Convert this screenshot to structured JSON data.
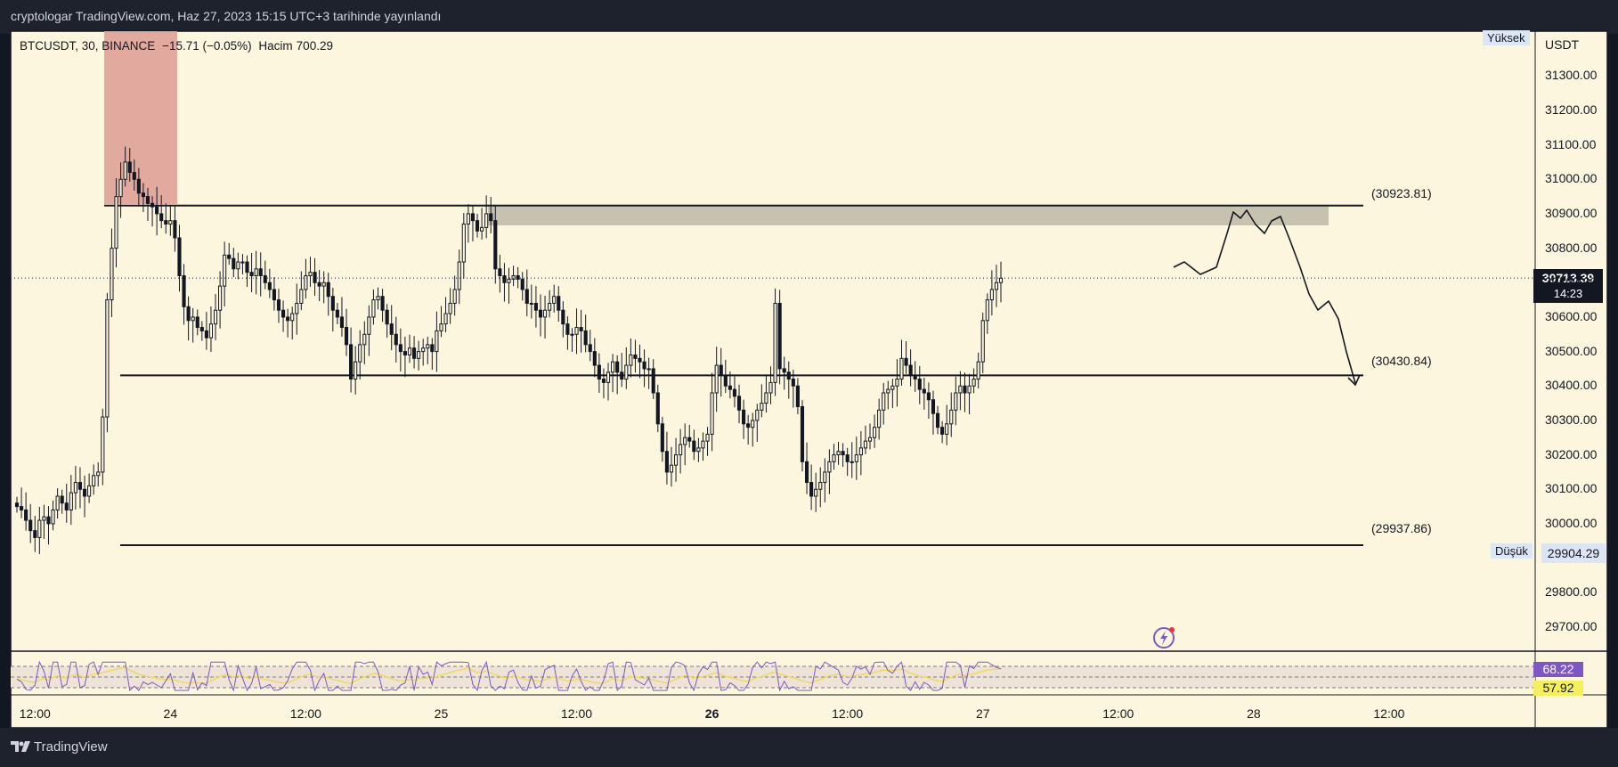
{
  "publish_info": "cryptologar TradingView.com, Haz 27, 2023 15:15 UTC+3 tarihinde yayınlandı",
  "header": {
    "symbol": "BTCUSDT, 30, BINANCE",
    "change": "−15.71 (−0.05%)",
    "volume_label": "Hacim",
    "volume_value": "700.29"
  },
  "price_axis": {
    "currency": "USDT",
    "high_label": "Yüksek",
    "low_label": "Düşük",
    "low_value": "29904.29",
    "current_price": "30713.39",
    "countdown": "14:23"
  },
  "levels": [
    {
      "label": "(30923.81)",
      "value": 30923.81
    },
    {
      "label": "(30430.84)",
      "value": 30430.84
    },
    {
      "label": "(29937.86)",
      "value": 29937.86
    }
  ],
  "rsi": {
    "value": "68.22",
    "ma_value": "57.92"
  },
  "footer": {
    "brand": "TradingView"
  },
  "colors": {
    "background": "#fdf6df",
    "frame": "#131722",
    "candle": "#131722",
    "supply_zone": "#e0a49a",
    "resistance_zone": "#c7c2b0",
    "rsi_line": "#7e57c2",
    "rsi_ma": "#f0d95a"
  },
  "icons": {
    "logo": "tradingview-logo-icon",
    "bolt": "lightning-bolt-icon"
  },
  "chart_data": {
    "type": "candlestick",
    "symbol": "BTCUSDT",
    "interval": "30",
    "y_ticks": [
      "31300.00",
      "31200.00",
      "31100.00",
      "31000.00",
      "30900.00",
      "30800.00",
      "30700.00",
      "30600.00",
      "30500.00",
      "30400.00",
      "30300.00",
      "30200.00",
      "30100.00",
      "30000.00",
      "29800.00",
      "29700.00"
    ],
    "ylim": [
      29630,
      31430
    ],
    "x_ticks": [
      {
        "label": "12:00",
        "index": 4
      },
      {
        "label": "24",
        "index": 34
      },
      {
        "label": "12:00",
        "index": 64
      },
      {
        "label": "25",
        "index": 94
      },
      {
        "label": "12:00",
        "index": 124
      },
      {
        "label": "26",
        "index": 154,
        "bold": true
      },
      {
        "label": "12:00",
        "index": 184
      },
      {
        "label": "27",
        "index": 214
      },
      {
        "label": "12:00",
        "index": 244
      },
      {
        "label": "28",
        "index": 274
      },
      {
        "label": "12:00",
        "index": 304
      }
    ],
    "total_slots": 306,
    "closes": [
      30050,
      30040,
      30010,
      29980,
      29960,
      30010,
      30020,
      30000,
      30040,
      30080,
      30060,
      30040,
      30090,
      30120,
      30100,
      30080,
      30110,
      30140,
      30150,
      30310,
      30650,
      30800,
      30950,
      31000,
      31050,
      31020,
      31000,
      30960,
      30950,
      30930,
      30920,
      30900,
      30880,
      30870,
      30880,
      30830,
      30720,
      30630,
      30590,
      30600,
      30570,
      30560,
      30540,
      30580,
      30620,
      30690,
      30780,
      30770,
      30740,
      30760,
      30760,
      30730,
      30720,
      30740,
      30720,
      30700,
      30680,
      30650,
      30620,
      30600,
      30590,
      30610,
      30640,
      30680,
      30720,
      30730,
      30700,
      30690,
      30700,
      30660,
      30620,
      30600,
      30570,
      30520,
      30420,
      30470,
      30520,
      30550,
      30600,
      30650,
      30660,
      30620,
      30580,
      30550,
      30520,
      30500,
      30490,
      30510,
      30480,
      30500,
      30510,
      30520,
      30500,
      30560,
      30580,
      30610,
      30640,
      30680,
      30760,
      30870,
      30900,
      30880,
      30850,
      30860,
      30900,
      30880,
      30740,
      30720,
      30700,
      30710,
      30720,
      30710,
      30680,
      30640,
      30640,
      30620,
      30600,
      30620,
      30640,
      30660,
      30620,
      30580,
      30550,
      30550,
      30570,
      30560,
      30520,
      30500,
      30460,
      30420,
      30410,
      30440,
      30470,
      30440,
      30420,
      30460,
      30490,
      30480,
      30470,
      30450,
      30450,
      30380,
      30290,
      30210,
      30150,
      30170,
      30200,
      30230,
      30250,
      30240,
      30210,
      30220,
      30240,
      30260,
      30380,
      30460,
      30430,
      30400,
      30390,
      30370,
      30330,
      30290,
      30280,
      30300,
      30330,
      30350,
      30380,
      30410,
      30640,
      30450,
      30440,
      30420,
      30400,
      30340,
      30180,
      30120,
      30080,
      30100,
      30120,
      30150,
      30180,
      30200,
      30210,
      30200,
      30180,
      30180,
      30200,
      30220,
      30240,
      30250,
      30280,
      30330,
      30380,
      30390,
      30400,
      30420,
      30480,
      30460,
      30430,
      30420,
      30390,
      30380,
      30360,
      30320,
      30280,
      30260,
      30290,
      30330,
      30380,
      30400,
      30380,
      30400,
      30420,
      30470,
      30590,
      30650,
      30680,
      30700,
      30713
    ]
  }
}
